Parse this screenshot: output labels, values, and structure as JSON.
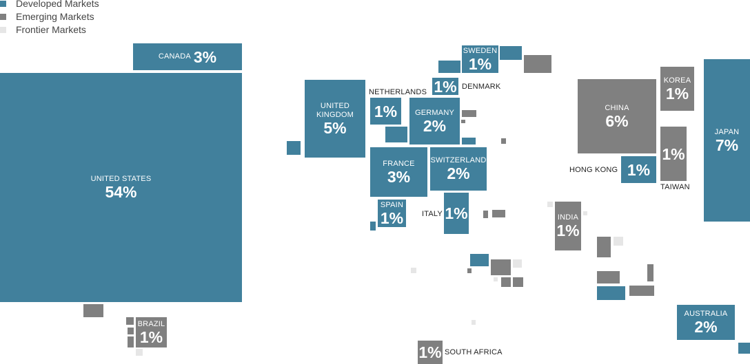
{
  "legend": [
    "Developed Markets",
    "Emerging Markets",
    "Frontier Markets"
  ],
  "countries": [
    {
      "name": "CANADA",
      "share": "3%"
    },
    {
      "name": "UNITED STATES",
      "share": "54%"
    },
    {
      "name": "UNITED KINGDOM",
      "share": "5%"
    },
    {
      "name": "NETHERLANDS",
      "share": "1%"
    },
    {
      "name": "SWEDEN",
      "share": "1%"
    },
    {
      "name": "DENMARK",
      "share": "1%"
    },
    {
      "name": "GERMANY",
      "share": "2%"
    },
    {
      "name": "FRANCE",
      "share": "3%"
    },
    {
      "name": "SWITZERLAND",
      "share": "2%"
    },
    {
      "name": "SPAIN",
      "share": "1%"
    },
    {
      "name": "ITALY",
      "share": "1%"
    },
    {
      "name": "CHINA",
      "share": "6%"
    },
    {
      "name": "KOREA",
      "share": "1%"
    },
    {
      "name": "TAIWAN",
      "share": "1%"
    },
    {
      "name": "HONG KONG",
      "share": "1%"
    },
    {
      "name": "JAPAN",
      "share": "7%"
    },
    {
      "name": "INDIA",
      "share": "1%"
    },
    {
      "name": "AUSTRALIA",
      "share": "2%"
    },
    {
      "name": "BRAZIL",
      "share": "1%"
    },
    {
      "name": "SOUTH AFRICA",
      "share": "1%"
    }
  ]
}
